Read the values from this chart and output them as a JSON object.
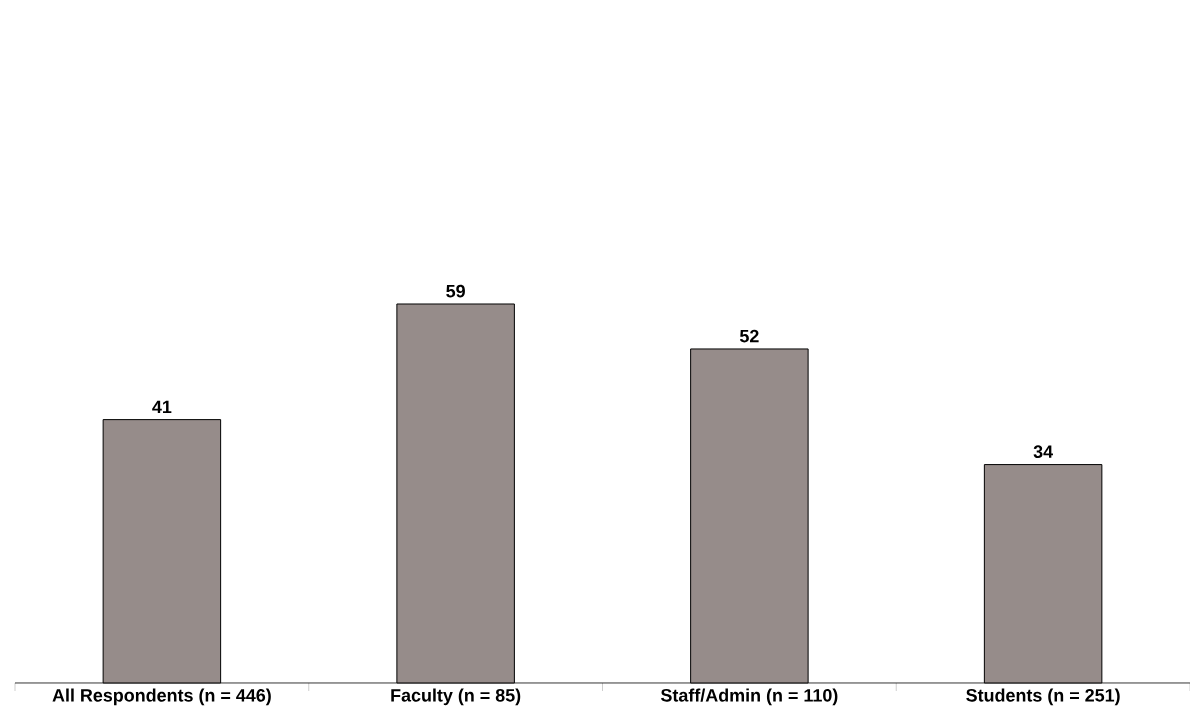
{
  "chart_data": {
    "type": "bar",
    "categories": [
      "All Respondents (n = 446)",
      "Faculty (n = 85)",
      "Staff/Admin (n = 110)",
      "Students (n = 251)"
    ],
    "values": [
      41,
      59,
      52,
      34
    ],
    "color": "#968c8a",
    "data_labels": true
  }
}
